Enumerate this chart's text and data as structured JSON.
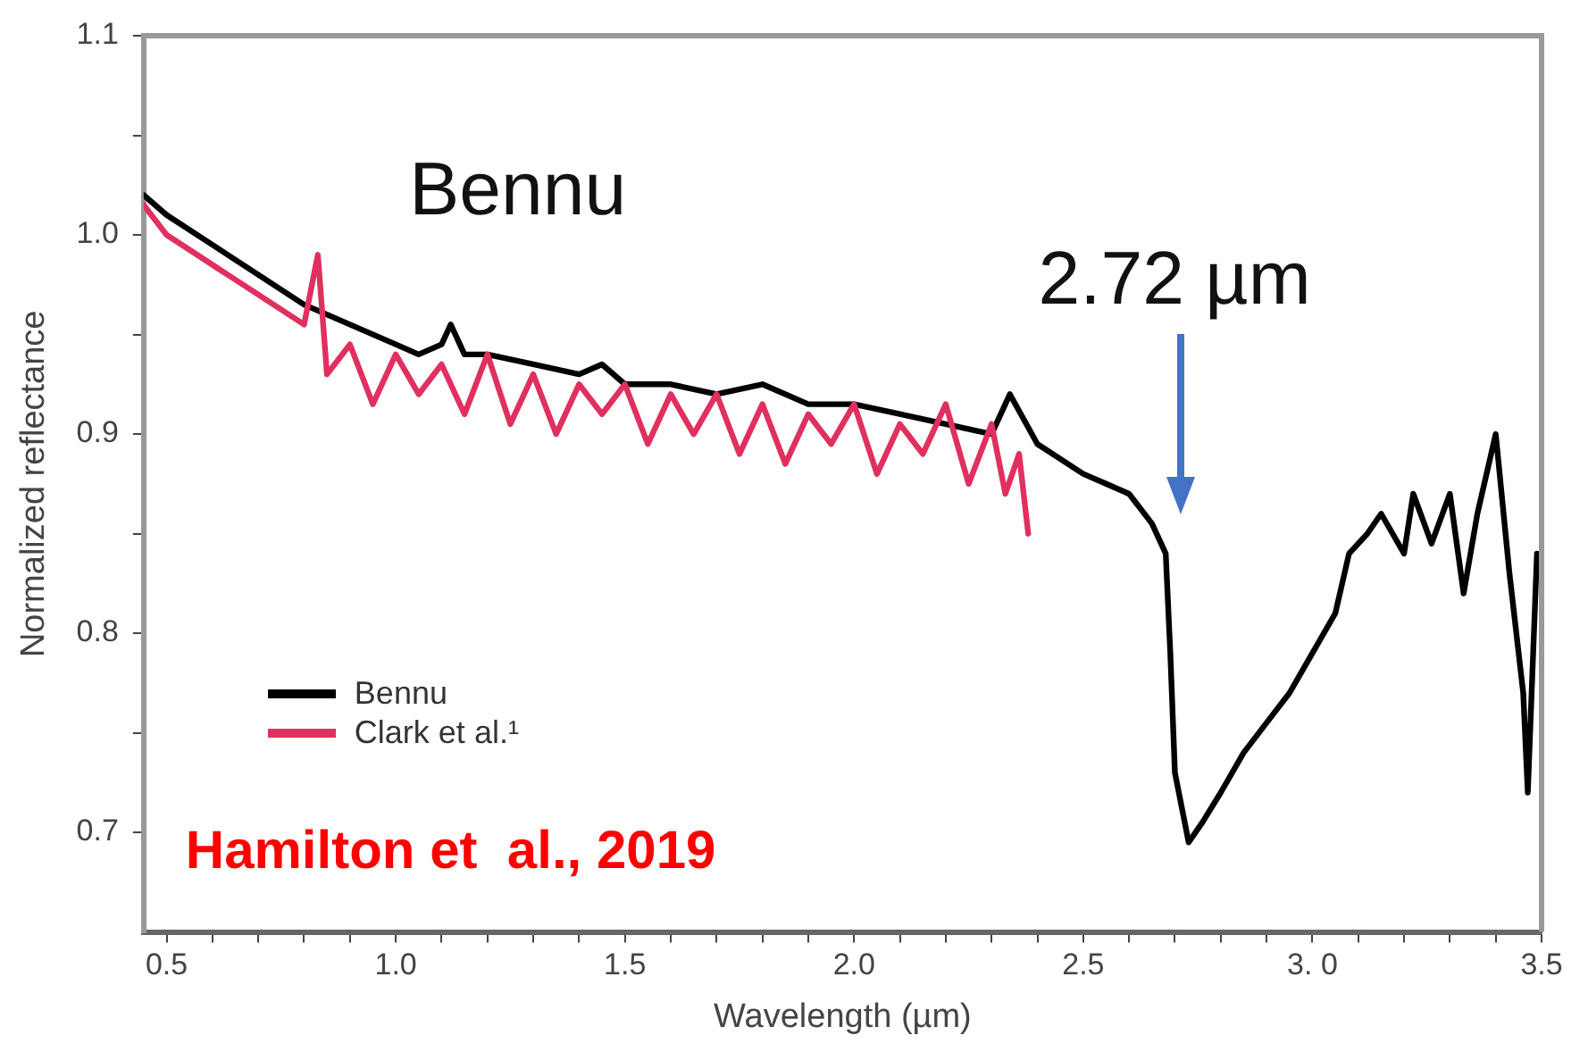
{
  "chart_data": {
    "type": "line",
    "xlabel": "Wavelength (µm)",
    "ylabel": "Normalized reflectance",
    "annotations": [
      "Bennu",
      "2.72 µm",
      "Hamilton et  al., 2019"
    ],
    "xlim": [
      0.45,
      3.5
    ],
    "xticks": [
      {
        "value": 0.5,
        "label": "0.5"
      },
      {
        "value": 0.6,
        "label": null
      },
      {
        "value": 0.7,
        "label": null
      },
      {
        "value": 0.8,
        "label": null
      },
      {
        "value": 0.9,
        "label": null
      },
      {
        "value": 1.0,
        "label": "1.0"
      },
      {
        "value": 1.1,
        "label": null
      },
      {
        "value": 1.2,
        "label": null
      },
      {
        "value": 1.3,
        "label": null
      },
      {
        "value": 1.4,
        "label": null
      },
      {
        "value": 1.5,
        "label": "1.5"
      },
      {
        "value": 1.6,
        "label": null
      },
      {
        "value": 1.7,
        "label": null
      },
      {
        "value": 1.8,
        "label": null
      },
      {
        "value": 1.9,
        "label": null
      },
      {
        "value": 2.0,
        "label": "2.0"
      },
      {
        "value": 2.1,
        "label": null
      },
      {
        "value": 2.2,
        "label": null
      },
      {
        "value": 2.3,
        "label": null
      },
      {
        "value": 2.4,
        "label": null
      },
      {
        "value": 2.5,
        "label": "2.5"
      },
      {
        "value": 2.6,
        "label": null
      },
      {
        "value": 2.7,
        "label": null
      },
      {
        "value": 2.8,
        "label": null
      },
      {
        "value": 2.9,
        "label": null
      },
      {
        "value": 3.0,
        "label": "3. 0"
      },
      {
        "value": 3.1,
        "label": null
      },
      {
        "value": 3.2,
        "label": null
      },
      {
        "value": 3.3,
        "label": null
      },
      {
        "value": 3.4,
        "label": null
      },
      {
        "value": 3.5,
        "label": "3.5"
      }
    ],
    "ylim": [
      0.65,
      1.1
    ],
    "yticks": [
      {
        "value": 0.7,
        "label": "0.7"
      },
      {
        "value": 0.75,
        "label": null
      },
      {
        "value": 0.8,
        "label": "0.8"
      },
      {
        "value": 0.85,
        "label": null
      },
      {
        "value": 0.9,
        "label": "0.9"
      },
      {
        "value": 0.95,
        "label": null
      },
      {
        "value": 1.0,
        "label": "1.0"
      },
      {
        "value": 1.05,
        "label": null
      },
      {
        "value": 1.1,
        "label": "1.1"
      }
    ],
    "grid": false,
    "legend": "bottom left",
    "marker": "none",
    "line_style": "solid",
    "series": [
      {
        "name": "Clark et al.¹",
        "color": "#e0305f",
        "x": [
          0.45,
          0.5,
          0.6,
          0.7,
          0.8,
          0.83,
          0.85,
          0.9,
          0.95,
          1.0,
          1.05,
          1.1,
          1.15,
          1.2,
          1.25,
          1.3,
          1.35,
          1.4,
          1.45,
          1.5,
          1.55,
          1.6,
          1.65,
          1.7,
          1.75,
          1.8,
          1.85,
          1.9,
          1.95,
          2.0,
          2.05,
          2.1,
          2.15,
          2.2,
          2.25,
          2.3,
          2.33,
          2.36,
          2.38
        ],
        "values": [
          1.015,
          1.0,
          0.985,
          0.97,
          0.955,
          0.99,
          0.93,
          0.945,
          0.915,
          0.94,
          0.92,
          0.935,
          0.91,
          0.94,
          0.905,
          0.93,
          0.9,
          0.925,
          0.91,
          0.925,
          0.895,
          0.92,
          0.9,
          0.92,
          0.89,
          0.915,
          0.885,
          0.91,
          0.895,
          0.915,
          0.88,
          0.905,
          0.89,
          0.915,
          0.875,
          0.905,
          0.87,
          0.89,
          0.85
        ]
      },
      {
        "name": "Bennu",
        "color": "#000000",
        "x": [
          0.45,
          0.5,
          0.6,
          0.7,
          0.8,
          0.9,
          1.0,
          1.05,
          1.1,
          1.12,
          1.15,
          1.2,
          1.3,
          1.4,
          1.45,
          1.5,
          1.6,
          1.7,
          1.8,
          1.9,
          2.0,
          2.1,
          2.2,
          2.3,
          2.34,
          2.4,
          2.5,
          2.55,
          2.6,
          2.65,
          2.68,
          2.69,
          2.7,
          2.73,
          2.76,
          2.8,
          2.85,
          2.9,
          2.95,
          3.0,
          3.05,
          3.08,
          3.12,
          3.15,
          3.2,
          3.22,
          3.26,
          3.3,
          3.33,
          3.36,
          3.4,
          3.43,
          3.46,
          3.47,
          3.49
        ],
        "values": [
          1.02,
          1.01,
          0.995,
          0.98,
          0.965,
          0.955,
          0.945,
          0.94,
          0.945,
          0.955,
          0.94,
          0.94,
          0.935,
          0.93,
          0.935,
          0.925,
          0.925,
          0.92,
          0.925,
          0.915,
          0.915,
          0.91,
          0.905,
          0.9,
          0.92,
          0.895,
          0.88,
          0.875,
          0.87,
          0.855,
          0.84,
          0.79,
          0.73,
          0.695,
          0.705,
          0.72,
          0.74,
          0.755,
          0.77,
          0.79,
          0.81,
          0.84,
          0.85,
          0.86,
          0.84,
          0.87,
          0.845,
          0.87,
          0.82,
          0.86,
          0.9,
          0.83,
          0.77,
          0.72,
          0.84
        ]
      }
    ]
  }
}
